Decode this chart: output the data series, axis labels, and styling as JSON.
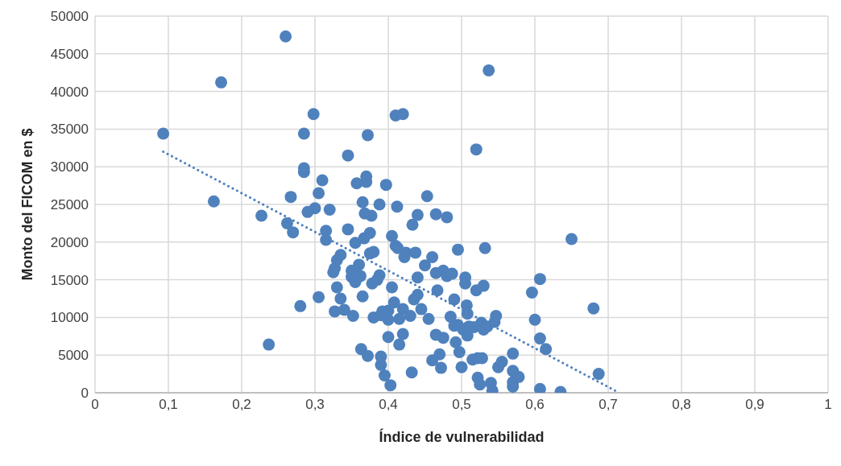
{
  "chart_data": {
    "type": "scatter",
    "xlabel": "Índice de vulnerabilidad",
    "ylabel": "Monto del FICOM en $",
    "xlim": [
      0,
      1
    ],
    "xticks": [
      0,
      {
        "value": 0.1,
        "label": "0,1"
      },
      {
        "value": 0.2,
        "label": "0,2"
      },
      {
        "value": 0.3,
        "label": "0,3"
      },
      {
        "value": 0.4,
        "label": "0,4"
      },
      {
        "value": 0.5,
        "label": "0,5"
      },
      {
        "value": 0.6,
        "label": "0,6"
      },
      {
        "value": 0.7,
        "label": "0,7"
      },
      {
        "value": 0.8,
        "label": "0,8"
      },
      {
        "value": 0.9,
        "label": "0,9"
      },
      1
    ],
    "ylim": [
      0,
      50000
    ],
    "yticks": [
      0,
      5000,
      10000,
      15000,
      20000,
      25000,
      30000,
      35000,
      40000,
      45000,
      50000
    ],
    "grid": true,
    "legend": false,
    "marker": "circle",
    "series": [
      {
        "type": "scatter",
        "color": "#4f81bd",
        "x": [
          0.093,
          0.172,
          0.162,
          0.237,
          0.227,
          0.26,
          0.262,
          0.267,
          0.27,
          0.28,
          0.285,
          0.285,
          0.285,
          0.29,
          0.298,
          0.3,
          0.305,
          0.305,
          0.31,
          0.315,
          0.315,
          0.32,
          0.325,
          0.327,
          0.327,
          0.33,
          0.33,
          0.335,
          0.335,
          0.34,
          0.345,
          0.345,
          0.35,
          0.35,
          0.352,
          0.355,
          0.355,
          0.357,
          0.36,
          0.362,
          0.363,
          0.365,
          0.365,
          0.367,
          0.368,
          0.37,
          0.37,
          0.372,
          0.372,
          0.375,
          0.375,
          0.377,
          0.378,
          0.38,
          0.38,
          0.385,
          0.388,
          0.388,
          0.39,
          0.39,
          0.39,
          0.392,
          0.395,
          0.397,
          0.4,
          0.4,
          0.4,
          0.403,
          0.405,
          0.405,
          0.408,
          0.41,
          0.41,
          0.412,
          0.413,
          0.415,
          0.415,
          0.42,
          0.42,
          0.42,
          0.422,
          0.424,
          0.43,
          0.432,
          0.433,
          0.435,
          0.437,
          0.44,
          0.44,
          0.44,
          0.445,
          0.45,
          0.453,
          0.455,
          0.46,
          0.46,
          0.465,
          0.465,
          0.465,
          0.467,
          0.47,
          0.472,
          0.475,
          0.475,
          0.48,
          0.48,
          0.485,
          0.487,
          0.49,
          0.49,
          0.492,
          0.495,
          0.495,
          0.497,
          0.5,
          0.502,
          0.505,
          0.505,
          0.507,
          0.508,
          0.508,
          0.51,
          0.515,
          0.517,
          0.52,
          0.52,
          0.522,
          0.522,
          0.525,
          0.527,
          0.528,
          0.53,
          0.53,
          0.532,
          0.535,
          0.537,
          0.54,
          0.542,
          0.545,
          0.547,
          0.55,
          0.555,
          0.57,
          0.57,
          0.57,
          0.57,
          0.578,
          0.596,
          0.6,
          0.607,
          0.607,
          0.607,
          0.615,
          0.635,
          0.65,
          0.68,
          0.687
        ],
        "values": [
          34400,
          41200,
          25400,
          6400,
          23500,
          47300,
          22500,
          26000,
          21300,
          11500,
          34400,
          29800,
          29300,
          24000,
          37000,
          24500,
          26500,
          12700,
          28200,
          20300,
          21500,
          24300,
          16000,
          10800,
          16500,
          17600,
          14000,
          18300,
          12500,
          11000,
          31500,
          21700,
          16200,
          15400,
          10200,
          14700,
          19900,
          27800,
          17000,
          15500,
          5800,
          25300,
          12800,
          20500,
          23800,
          28000,
          28700,
          4900,
          34200,
          18500,
          21200,
          23500,
          14500,
          10000,
          18700,
          15000,
          15600,
          25000,
          4800,
          10300,
          3700,
          10800,
          2300,
          27600,
          7400,
          9700,
          10900,
          1000,
          14000,
          20800,
          12000,
          19500,
          36800,
          24700,
          19200,
          6400,
          9800,
          7800,
          11100,
          37000,
          18000,
          18600,
          10200,
          2700,
          22300,
          12400,
          18600,
          13000,
          23600,
          15300,
          11100,
          16900,
          26100,
          9800,
          4300,
          18000,
          7700,
          23700,
          15900,
          13600,
          5100,
          3300,
          7300,
          16200,
          15500,
          23300,
          10100,
          15800,
          8900,
          12400,
          6700,
          19000,
          9000,
          5400,
          3400,
          8400,
          15300,
          14500,
          11600,
          10500,
          7600,
          8800,
          4400,
          8700,
          32300,
          13600,
          4600,
          2000,
          1100,
          9300,
          4600,
          8400,
          14200,
          19200,
          8800,
          42800,
          1300,
          300,
          9400,
          10200,
          3400,
          4100,
          5200,
          2900,
          1400,
          800,
          2100,
          13300,
          9700,
          7200,
          15100,
          500,
          5800,
          100,
          20400,
          11200,
          2500
        ]
      },
      {
        "type": "line",
        "color": "#4f81bd",
        "line_style": "dotted",
        "marker": "none",
        "x": [
          0.093,
          0.715
        ],
        "values": [
          32000,
          0
        ]
      }
    ]
  }
}
